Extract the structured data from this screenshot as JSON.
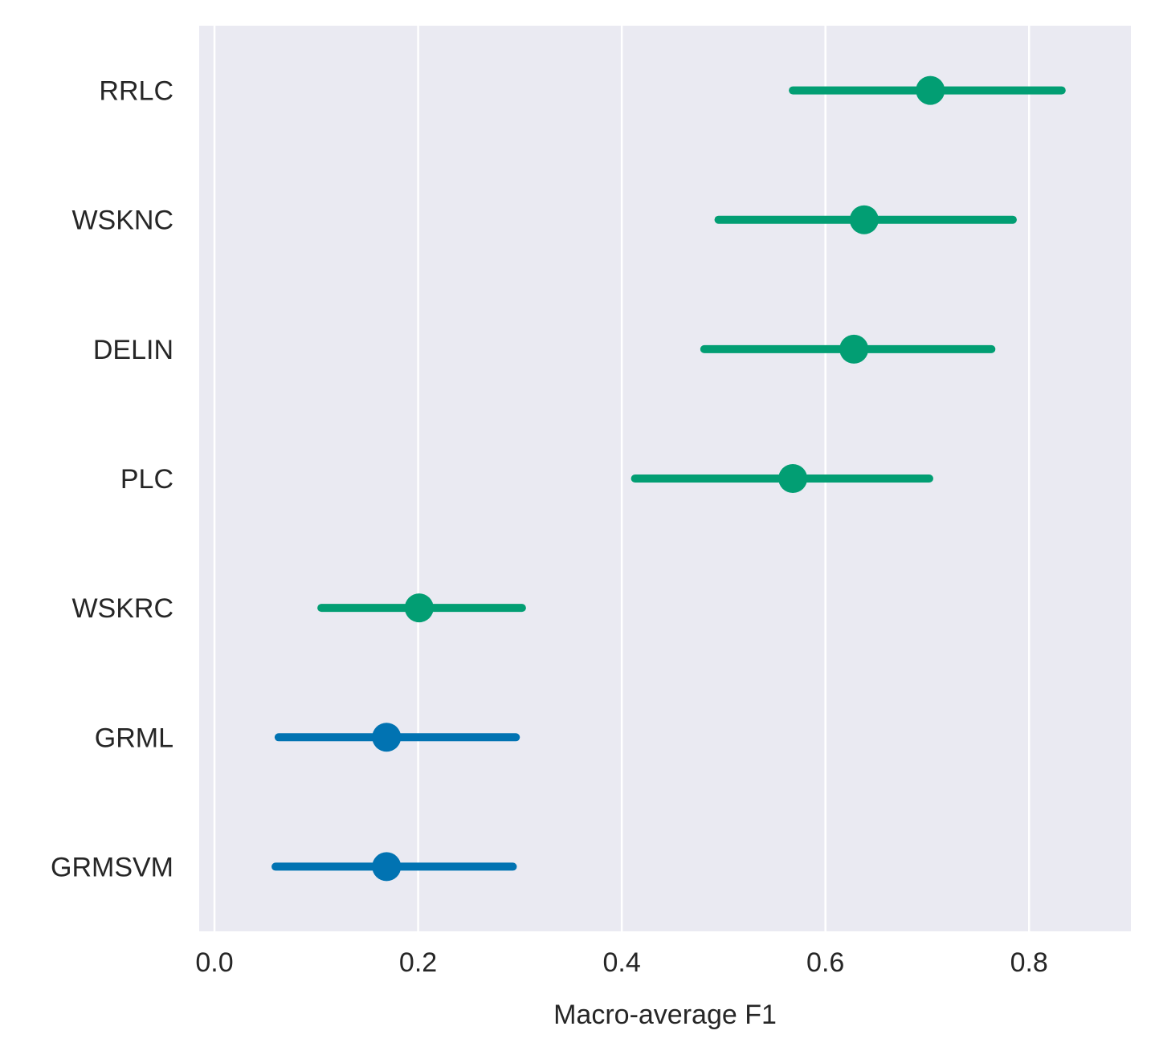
{
  "chart_data": {
    "type": "pointplot",
    "orientation": "horizontal",
    "title": "",
    "xlabel": "Macro-average F1",
    "ylabel": "",
    "xlim": [
      -0.015,
      0.9
    ],
    "xticks": [
      0.0,
      0.2,
      0.4,
      0.6,
      0.8
    ],
    "xtick_labels": [
      "0.0",
      "0.2",
      "0.4",
      "0.6",
      "0.8"
    ],
    "grid": "vertical",
    "legend": "none",
    "background_color": "#eaeaf2",
    "grid_color": "#ffffff",
    "categories": [
      "RRLC",
      "WSKNC",
      "DELIN",
      "PLC",
      "WSKRC",
      "GRML",
      "GRMSVM"
    ],
    "points": [
      {
        "label": "RRLC",
        "value": 0.703,
        "ci_low": 0.568,
        "ci_high": 0.832,
        "color": "#029e73"
      },
      {
        "label": "WSKNC",
        "value": 0.638,
        "ci_low": 0.495,
        "ci_high": 0.784,
        "color": "#029e73"
      },
      {
        "label": "DELIN",
        "value": 0.628,
        "ci_low": 0.481,
        "ci_high": 0.763,
        "color": "#029e73"
      },
      {
        "label": "PLC",
        "value": 0.568,
        "ci_low": 0.413,
        "ci_high": 0.702,
        "color": "#029e73"
      },
      {
        "label": "WSKRC",
        "value": 0.201,
        "ci_low": 0.105,
        "ci_high": 0.302,
        "color": "#029e73"
      },
      {
        "label": "GRML",
        "value": 0.169,
        "ci_low": 0.063,
        "ci_high": 0.296,
        "color": "#0173b2"
      },
      {
        "label": "GRMSVM",
        "value": 0.169,
        "ci_low": 0.06,
        "ci_high": 0.293,
        "color": "#0173b2"
      }
    ]
  }
}
